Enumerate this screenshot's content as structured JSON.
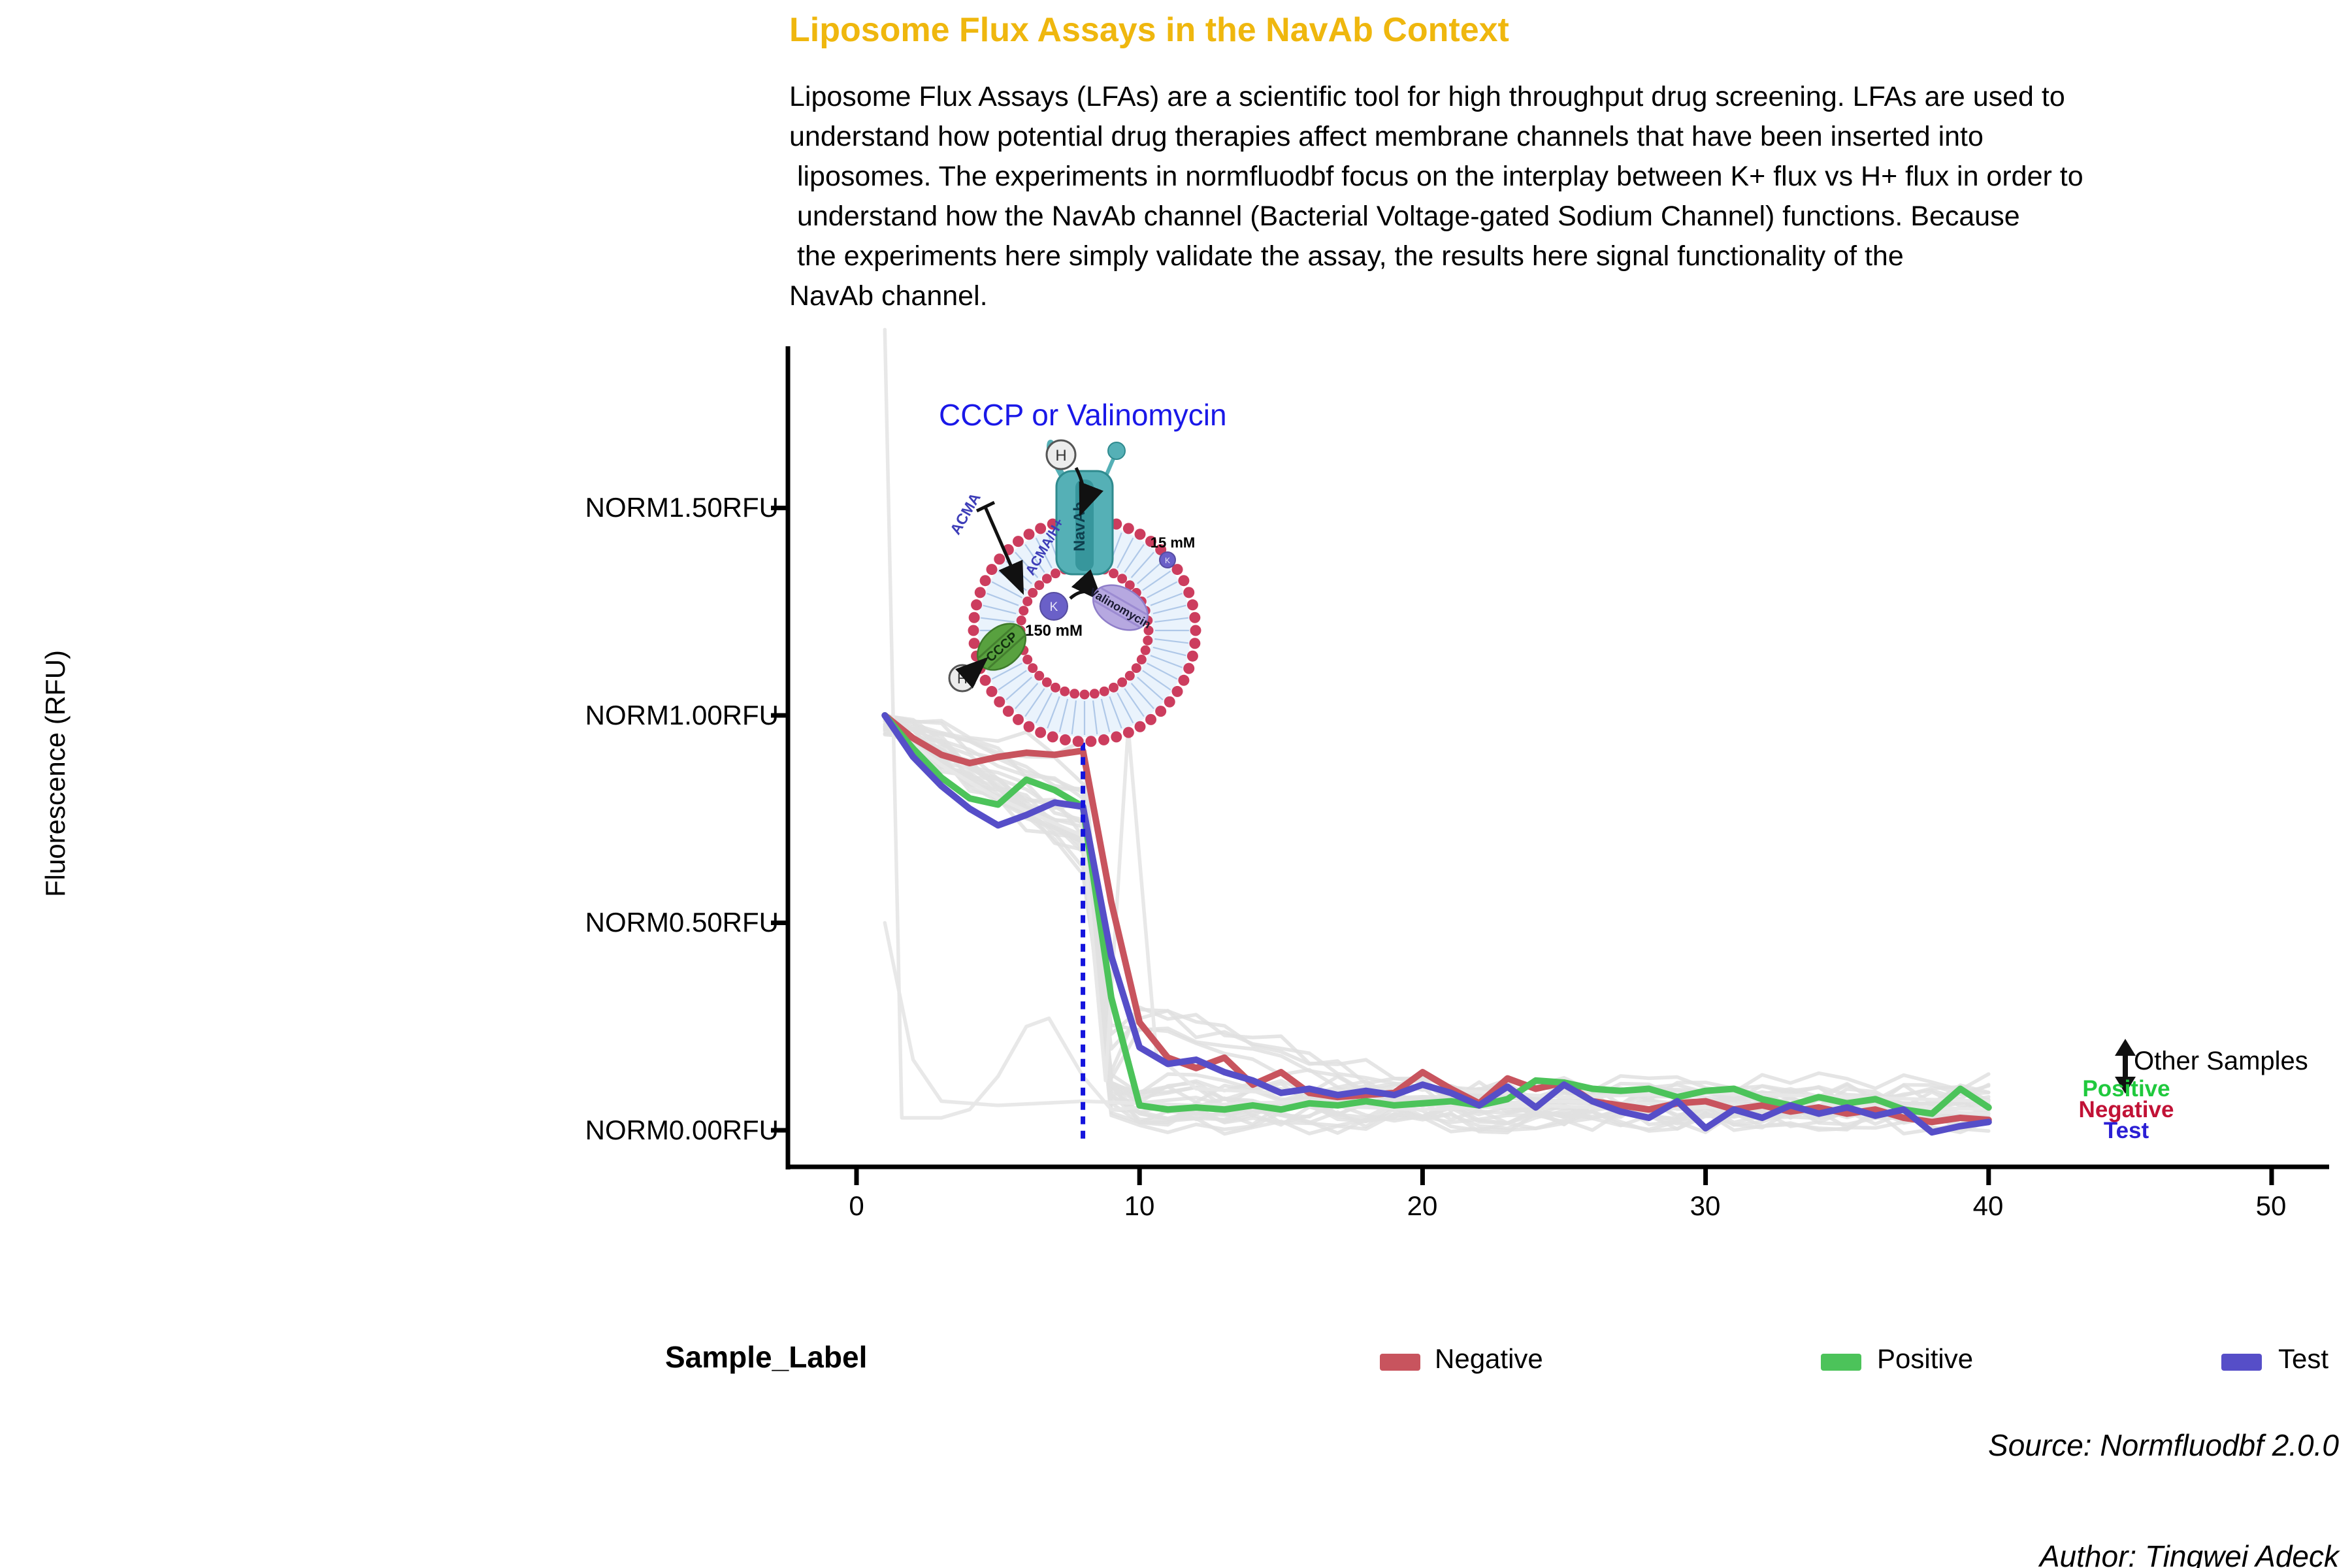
{
  "title": {
    "text": "Liposome Flux Assays in the NavAb Context",
    "color": "#EFB70E"
  },
  "description": {
    "lines": [
      "Liposome Flux Assays (LFAs) are a scientific tool for high throughput drug screening. LFAs are used to",
      "understand how potential drug therapies affect membrane channels that have been inserted into",
      " liposomes. The experiments in normfluodbf focus on the interplay between K+ flux vs H+ flux in order to",
      " understand how the NavAb channel (Bacterial Voltage-gated Sodium Channel) functions. Because",
      " the experiments here simply validate the assay, the results here signal functionality of the",
      "NavAb channel."
    ]
  },
  "y_axis": {
    "title": "Fluorescence (RFU)",
    "ticks": [
      {
        "label": "NORM1.50RFU",
        "value": 1.5
      },
      {
        "label": "NORM1.00RFU",
        "value": 1.0
      },
      {
        "label": "NORM0.50RFU",
        "value": 0.5
      },
      {
        "label": "NORM0.00RFU",
        "value": 0.0
      }
    ]
  },
  "x_axis": {
    "ticks": [
      {
        "label": "0",
        "value": 0
      },
      {
        "label": "10",
        "value": 10
      },
      {
        "label": "20",
        "value": 20
      },
      {
        "label": "30",
        "value": 30
      },
      {
        "label": "40",
        "value": 40
      },
      {
        "label": "50",
        "value": 50
      }
    ]
  },
  "inset": {
    "title": {
      "text": "CCCP or Valinomycin",
      "color": "#1A18E8"
    },
    "labels": {
      "navab": "NavAb",
      "acma": "ACMA",
      "acma_h": "ACMA/H+",
      "cccp": "CCCP",
      "valinomycin": "Valinomycin",
      "h": "H",
      "k": "K",
      "inner_conc": "150 mM",
      "outer_conc": "15 mM"
    }
  },
  "annotation": {
    "other_samples": {
      "text": "Other Samples",
      "color": "#000000"
    },
    "positive": {
      "text": "Positive",
      "color": "#1FC93D"
    },
    "negative": {
      "text": "Negative",
      "color": "#C11236"
    },
    "test": {
      "text": "Test",
      "color": "#2B1FD4"
    }
  },
  "legend": {
    "title": "Sample_Label",
    "items": [
      {
        "label": "Negative",
        "color": "#C8545E"
      },
      {
        "label": "Positive",
        "color": "#4CC35A"
      },
      {
        "label": "Test",
        "color": "#564EC8"
      }
    ]
  },
  "footer": {
    "source": "Source: Normfluodbf 2.0.0",
    "author": "Author: Tingwei Adeck"
  },
  "chart_data": {
    "type": "line",
    "title": "Liposome Flux Assays in the NavAb Context",
    "xlabel": "",
    "ylabel": "Fluorescence (RFU)",
    "xlim": [
      -2,
      52
    ],
    "ylim": [
      -0.1,
      1.95
    ],
    "grid": false,
    "legend_position": "bottom",
    "x_start": 1,
    "x_step": 1,
    "series": [
      {
        "name": "Negative",
        "color": "#C8545E",
        "values": [
          1.0,
          0.945,
          0.905,
          0.885,
          0.9,
          0.91,
          0.905,
          0.915,
          0.55,
          0.26,
          0.175,
          0.15,
          0.175,
          0.11,
          0.14,
          0.09,
          0.08,
          0.085,
          0.09,
          0.14,
          0.1,
          0.065,
          0.125,
          0.1,
          0.115,
          0.07,
          0.06,
          0.05,
          0.065,
          0.07,
          0.05,
          0.06,
          0.045,
          0.055,
          0.04,
          0.05,
          0.03,
          0.02,
          0.03,
          0.025
        ]
      },
      {
        "name": "Positive",
        "color": "#4CC35A",
        "values": [
          1.0,
          0.92,
          0.85,
          0.8,
          0.785,
          0.845,
          0.82,
          0.78,
          0.32,
          0.06,
          0.05,
          0.055,
          0.05,
          0.06,
          0.05,
          0.065,
          0.06,
          0.07,
          0.06,
          0.065,
          0.07,
          0.06,
          0.075,
          0.12,
          0.115,
          0.1,
          0.095,
          0.1,
          0.08,
          0.095,
          0.1,
          0.075,
          0.06,
          0.08,
          0.065,
          0.075,
          0.05,
          0.04,
          0.1,
          0.055
        ]
      },
      {
        "name": "Test",
        "color": "#564EC8",
        "values": [
          1.0,
          0.9,
          0.83,
          0.775,
          0.735,
          0.76,
          0.79,
          0.78,
          0.42,
          0.2,
          0.16,
          0.17,
          0.14,
          0.12,
          0.09,
          0.1,
          0.085,
          0.095,
          0.085,
          0.11,
          0.09,
          0.06,
          0.105,
          0.055,
          0.11,
          0.07,
          0.045,
          0.03,
          0.07,
          0.005,
          0.05,
          0.03,
          0.06,
          0.04,
          0.055,
          0.035,
          0.05,
          -0.005,
          0.01,
          0.02
        ]
      }
    ],
    "dashed_marker": {
      "x": 8,
      "from": -0.02,
      "to": 0.95,
      "color": "#1414DD",
      "style": "dotted"
    },
    "other_samples": {
      "label": "Other Samples",
      "color": "#E1E1E1",
      "special": [
        [
          [
            1,
            1.93
          ],
          [
            1.6,
            0.03
          ],
          [
            3,
            0.03
          ],
          [
            4,
            0.05
          ],
          [
            5,
            0.13
          ],
          [
            6,
            0.25
          ],
          [
            6.8,
            0.27
          ],
          [
            8,
            0.13
          ],
          [
            9,
            0.05
          ],
          [
            11,
            0.06
          ],
          [
            13,
            0.05
          ],
          [
            16,
            0.06
          ],
          [
            20,
            0.05
          ],
          [
            24,
            0.06
          ],
          [
            28,
            0.05
          ],
          [
            32,
            0.06
          ],
          [
            36,
            0.05
          ],
          [
            40,
            0.04
          ]
        ],
        [
          [
            1,
            0.5
          ],
          [
            2,
            0.17
          ],
          [
            3,
            0.07
          ],
          [
            5,
            0.06
          ],
          [
            8,
            0.07
          ],
          [
            12,
            0.06
          ],
          [
            16,
            0.07
          ],
          [
            20,
            0.06
          ],
          [
            25,
            0.07
          ],
          [
            30,
            0.06
          ],
          [
            35,
            0.06
          ],
          [
            40,
            0.05
          ]
        ],
        [
          [
            1,
            0.99
          ],
          [
            2,
            0.93
          ],
          [
            3,
            0.88
          ],
          [
            4,
            0.84
          ],
          [
            5,
            0.8
          ],
          [
            6,
            0.77
          ],
          [
            7,
            0.74
          ],
          [
            8,
            0.71
          ],
          [
            8.8,
            0.12
          ],
          [
            9.6,
            0.97
          ],
          [
            10.6,
            0.18
          ],
          [
            12,
            0.1
          ],
          [
            15,
            0.09
          ],
          [
            20,
            0.1
          ],
          [
            25,
            0.08
          ],
          [
            30,
            0.09
          ],
          [
            35,
            0.08
          ],
          [
            40,
            0.07
          ]
        ]
      ],
      "generated": {
        "count": 23,
        "seed": 7,
        "plateau_range": [
          0.62,
          0.92
        ],
        "settle_range": [
          0.015,
          0.115
        ]
      }
    }
  }
}
